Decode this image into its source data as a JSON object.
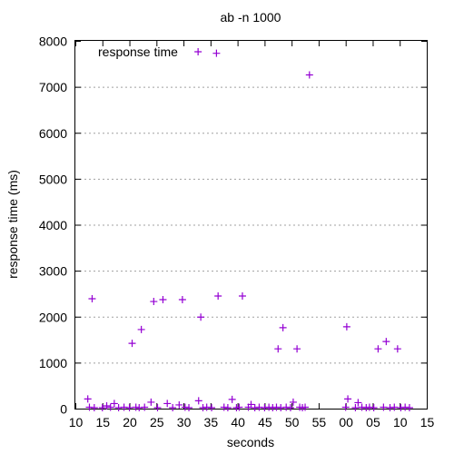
{
  "chart_data": {
    "type": "scatter",
    "title": "ab -n 1000",
    "xlabel": "seconds",
    "ylabel": "response time (ms)",
    "x_tick_labels": [
      "10",
      "15",
      "20",
      "25",
      "30",
      "35",
      "40",
      "45",
      "50",
      "55",
      "00",
      "05",
      "10",
      "15"
    ],
    "y_ticks": [
      0,
      1000,
      2000,
      3000,
      4000,
      5000,
      6000,
      7000,
      8000
    ],
    "ylim": [
      0,
      8000
    ],
    "grid": "horizontal",
    "legend_position": "top-left",
    "series": [
      {
        "name": "response time",
        "color": "#9400d3",
        "marker": "plus",
        "x": [
          12.3,
          12.6,
          13.1,
          13.5,
          15.0,
          15.8,
          16.5,
          17.2,
          18.0,
          19.0,
          20.0,
          20.5,
          21.2,
          21.8,
          22.2,
          22.8,
          24.0,
          24.5,
          25.2,
          26.2,
          27.0,
          28.0,
          29.2,
          29.8,
          30.3,
          31.0,
          32.8,
          33.2,
          33.6,
          34.3,
          35.2,
          36.1,
          36.4,
          37.5,
          38.2,
          39.0,
          39.8,
          40.3,
          40.9,
          42.0,
          42.5,
          43.2,
          44.0,
          45.0,
          45.8,
          46.5,
          47.2,
          47.5,
          48.0,
          48.4,
          49.0,
          49.8,
          50.3,
          51.0,
          51.5,
          52.0,
          52.5,
          53.3,
          60.0,
          60.2,
          60.4,
          61.8,
          62.3,
          63.0,
          63.8,
          64.4,
          65.2,
          66.0,
          67.0,
          67.5,
          68.2,
          69.0,
          69.6,
          70.2,
          71.0,
          71.8
        ],
        "y": [
          210,
          30,
          2390,
          20,
          20,
          60,
          30,
          110,
          20,
          30,
          20,
          1420,
          30,
          20,
          1720,
          30,
          140,
          2330,
          20,
          2370,
          110,
          20,
          80,
          2370,
          30,
          20,
          170,
          1990,
          20,
          30,
          20,
          7730,
          2450,
          30,
          20,
          200,
          20,
          30,
          2450,
          30,
          90,
          20,
          30,
          20,
          30,
          20,
          30,
          1300,
          20,
          1760,
          30,
          20,
          140,
          1300,
          30,
          20,
          30,
          7260,
          30,
          1780,
          210,
          20,
          130,
          30,
          20,
          30,
          20,
          1300,
          30,
          1460,
          20,
          30,
          1300,
          20,
          30,
          20
        ]
      }
    ]
  }
}
